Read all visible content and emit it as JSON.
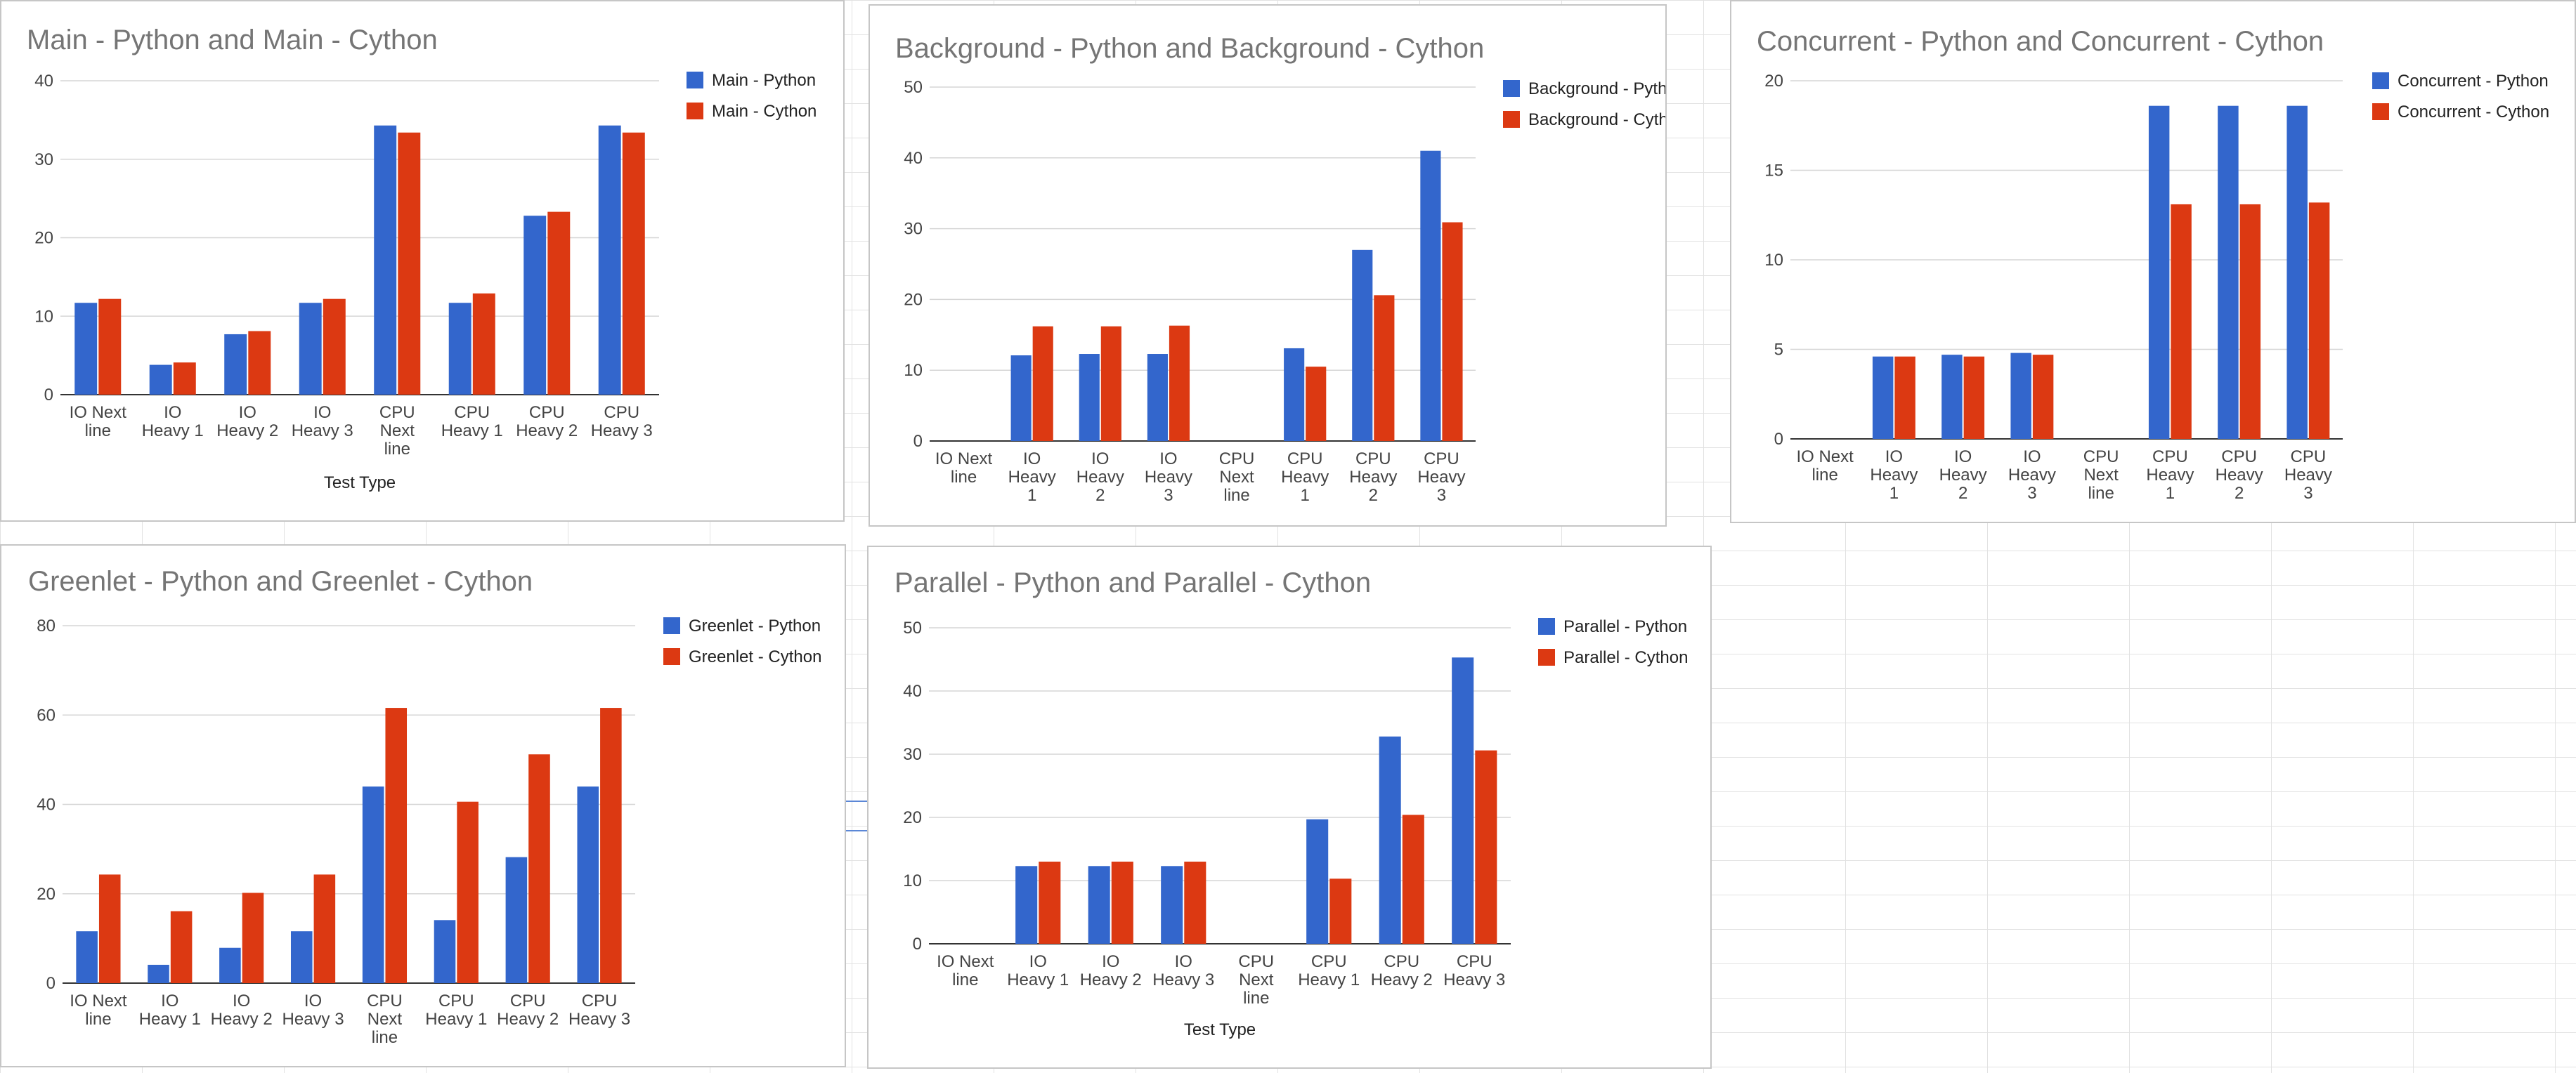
{
  "colors": {
    "python": "#3366cc",
    "cython": "#dc3912"
  },
  "charts": [
    {
      "title": "Main - Python and Main - Cython",
      "xlabel": "Test Type",
      "ylim": [
        0,
        40
      ],
      "ticks": [
        "0",
        "10",
        "20",
        "30",
        "40"
      ],
      "categories": [
        [
          "IO Next",
          "line"
        ],
        [
          "IO",
          "Heavy 1"
        ],
        [
          "IO",
          "Heavy 2"
        ],
        [
          "IO",
          "Heavy 3"
        ],
        [
          "CPU",
          "Next",
          "line"
        ],
        [
          "CPU",
          "Heavy 1"
        ],
        [
          "CPU",
          "Heavy 2"
        ],
        [
          "CPU",
          "Heavy 3"
        ]
      ],
      "legend": [
        "Main - Python",
        "Main - Cython"
      ]
    },
    {
      "title": "Background - Python and Background - Cython",
      "xlabel": "",
      "ylim": [
        0,
        50
      ],
      "ticks": [
        "0",
        "10",
        "20",
        "30",
        "40",
        "50"
      ],
      "categories": [
        [
          "IO Next",
          "line"
        ],
        [
          "IO",
          "Heavy",
          "1"
        ],
        [
          "IO",
          "Heavy",
          "2"
        ],
        [
          "IO",
          "Heavy",
          "3"
        ],
        [
          "CPU",
          "Next",
          "line"
        ],
        [
          "CPU",
          "Heavy",
          "1"
        ],
        [
          "CPU",
          "Heavy",
          "2"
        ],
        [
          "CPU",
          "Heavy",
          "3"
        ]
      ],
      "legend": [
        "Background - Python",
        "Background - Cython"
      ]
    },
    {
      "title": "Concurrent - Python and Concurrent - Cython",
      "xlabel": "",
      "ylim": [
        0,
        20
      ],
      "ticks": [
        "0",
        "5",
        "10",
        "15",
        "20"
      ],
      "categories": [
        [
          "IO Next",
          "line"
        ],
        [
          "IO",
          "Heavy",
          "1"
        ],
        [
          "IO",
          "Heavy",
          "2"
        ],
        [
          "IO",
          "Heavy",
          "3"
        ],
        [
          "CPU",
          "Next",
          "line"
        ],
        [
          "CPU",
          "Heavy",
          "1"
        ],
        [
          "CPU",
          "Heavy",
          "2"
        ],
        [
          "CPU",
          "Heavy",
          "3"
        ]
      ],
      "legend": [
        "Concurrent - Python",
        "Concurrent - Cython"
      ]
    },
    {
      "title": "Greenlet - Python and Greenlet - Cython",
      "xlabel": "",
      "ylim": [
        0,
        80
      ],
      "ticks": [
        "0",
        "20",
        "40",
        "60",
        "80"
      ],
      "categories": [
        [
          "IO Next",
          "line"
        ],
        [
          "IO",
          "Heavy 1"
        ],
        [
          "IO",
          "Heavy 2"
        ],
        [
          "IO",
          "Heavy 3"
        ],
        [
          "CPU",
          "Next",
          "line"
        ],
        [
          "CPU",
          "Heavy 1"
        ],
        [
          "CPU",
          "Heavy 2"
        ],
        [
          "CPU",
          "Heavy 3"
        ]
      ],
      "legend": [
        "Greenlet - Python",
        "Greenlet - Cython"
      ]
    },
    {
      "title": "Parallel - Python and Parallel - Cython",
      "xlabel": "Test Type",
      "ylim": [
        0,
        50
      ],
      "ticks": [
        "0",
        "10",
        "20",
        "30",
        "40",
        "50"
      ],
      "categories": [
        [
          "IO Next",
          "line"
        ],
        [
          "IO",
          "Heavy 1"
        ],
        [
          "IO",
          "Heavy 2"
        ],
        [
          "IO",
          "Heavy 3"
        ],
        [
          "CPU",
          "Next",
          "line"
        ],
        [
          "CPU",
          "Heavy 1"
        ],
        [
          "CPU",
          "Heavy 2"
        ],
        [
          "CPU",
          "Heavy 3"
        ]
      ],
      "legend": [
        "Parallel - Python",
        "Parallel - Cython"
      ]
    }
  ],
  "chart_data": [
    {
      "type": "bar",
      "title": "Main - Python and Main - Cython",
      "xlabel": "Test Type",
      "ylabel": "",
      "ylim": [
        0,
        40
      ],
      "grid": true,
      "legend_position": "right",
      "categories": [
        "IO Next line",
        "IO Heavy 1",
        "IO Heavy 2",
        "IO Heavy 3",
        "CPU Next line",
        "CPU Heavy 1",
        "CPU Heavy 2",
        "CPU Heavy 3"
      ],
      "series": [
        {
          "name": "Main - Python",
          "values": [
            11.7,
            3.8,
            7.7,
            11.7,
            34.3,
            11.7,
            22.8,
            34.3
          ]
        },
        {
          "name": "Main - Cython",
          "values": [
            12.2,
            4.1,
            8.1,
            12.2,
            33.4,
            12.9,
            23.3,
            33.4
          ]
        }
      ]
    },
    {
      "type": "bar",
      "title": "Background - Python and Background - Cython",
      "xlabel": "",
      "ylabel": "",
      "ylim": [
        0,
        50
      ],
      "grid": true,
      "legend_position": "right",
      "categories": [
        "IO Next line",
        "IO Heavy 1",
        "IO Heavy 2",
        "IO Heavy 3",
        "CPU Next line",
        "CPU Heavy 1",
        "CPU Heavy 2",
        "CPU Heavy 3"
      ],
      "series": [
        {
          "name": "Background - Python",
          "values": [
            0,
            12.1,
            12.3,
            12.3,
            0,
            13.1,
            27.0,
            41.0
          ]
        },
        {
          "name": "Background - Cython",
          "values": [
            0,
            16.2,
            16.2,
            16.3,
            0,
            10.5,
            20.6,
            30.9
          ]
        }
      ]
    },
    {
      "type": "bar",
      "title": "Concurrent - Python and Concurrent - Cython",
      "xlabel": "",
      "ylabel": "",
      "ylim": [
        0,
        20
      ],
      "grid": true,
      "legend_position": "right",
      "categories": [
        "IO Next line",
        "IO Heavy 1",
        "IO Heavy 2",
        "IO Heavy 3",
        "CPU Next line",
        "CPU Heavy 1",
        "CPU Heavy 2",
        "CPU Heavy 3"
      ],
      "series": [
        {
          "name": "Concurrent - Python",
          "values": [
            0,
            4.6,
            4.7,
            4.8,
            0,
            18.6,
            18.6,
            18.6
          ]
        },
        {
          "name": "Concurrent - Cython",
          "values": [
            0,
            4.6,
            4.6,
            4.7,
            0,
            13.1,
            13.1,
            13.2
          ]
        }
      ]
    },
    {
      "type": "bar",
      "title": "Greenlet - Python and Greenlet - Cython",
      "xlabel": "",
      "ylabel": "",
      "ylim": [
        0,
        80
      ],
      "grid": true,
      "legend_position": "right",
      "categories": [
        "IO Next line",
        "IO Heavy 1",
        "IO Heavy 2",
        "IO Heavy 3",
        "CPU Next line",
        "CPU Heavy 1",
        "CPU Heavy 2",
        "CPU Heavy 3"
      ],
      "series": [
        {
          "name": "Greenlet - Python",
          "values": [
            11.6,
            4.1,
            7.9,
            11.6,
            44.0,
            14.1,
            28.2,
            44.0
          ]
        },
        {
          "name": "Greenlet - Cython",
          "values": [
            24.3,
            16.1,
            20.2,
            24.3,
            61.6,
            40.6,
            51.2,
            61.6
          ]
        }
      ]
    },
    {
      "type": "bar",
      "title": "Parallel - Python and Parallel - Cython",
      "xlabel": "Test Type",
      "ylabel": "",
      "ylim": [
        0,
        50
      ],
      "grid": true,
      "legend_position": "right",
      "categories": [
        "IO Next line",
        "IO Heavy 1",
        "IO Heavy 2",
        "IO Heavy 3",
        "CPU Next line",
        "CPU Heavy 1",
        "CPU Heavy 2",
        "CPU Heavy 3"
      ],
      "series": [
        {
          "name": "Parallel - Python",
          "values": [
            0,
            12.3,
            12.3,
            12.3,
            0,
            19.7,
            32.8,
            45.3
          ]
        },
        {
          "name": "Parallel - Cython",
          "values": [
            0,
            13.0,
            13.0,
            13.0,
            0,
            10.3,
            20.4,
            30.6
          ]
        }
      ]
    }
  ]
}
